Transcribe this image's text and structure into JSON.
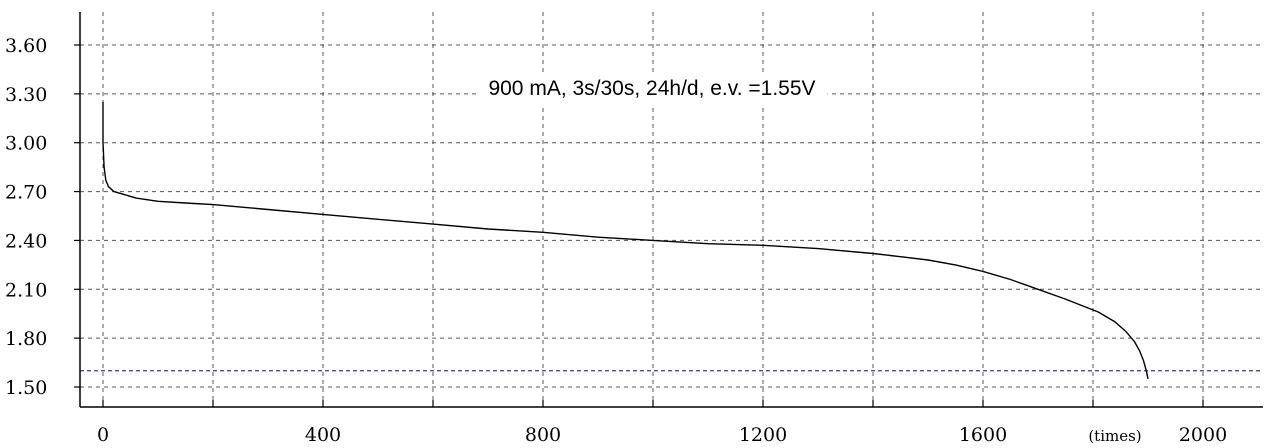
{
  "chart_data": {
    "type": "line",
    "title": "900 mA, 3s/30s, 24h/d, e.v. =1.55V",
    "x_unit": "(times)",
    "xlim": [
      0,
      2090
    ],
    "ylim": [
      1.45,
      3.78
    ],
    "x_ticks": [
      "0",
      "400",
      "800",
      "1200",
      "1600",
      "2000"
    ],
    "y_ticks": [
      "1.50",
      "1.80",
      "2.10",
      "2.40",
      "2.70",
      "3.00",
      "3.30",
      "3.60"
    ],
    "grid": true,
    "reference_line": {
      "y": 1.6,
      "color": "#2b3f8c"
    },
    "series": [
      {
        "color": "#000000",
        "x": [
          0,
          0,
          2,
          5,
          10,
          20,
          40,
          60,
          100,
          150,
          200,
          300,
          400,
          500,
          600,
          700,
          800,
          900,
          1000,
          1100,
          1200,
          1300,
          1400,
          1450,
          1500,
          1550,
          1600,
          1650,
          1700,
          1750,
          1780,
          1810,
          1840,
          1860,
          1875,
          1885,
          1892,
          1897,
          1900
        ],
        "y": [
          3.25,
          3.0,
          2.85,
          2.77,
          2.73,
          2.7,
          2.68,
          2.66,
          2.64,
          2.63,
          2.62,
          2.59,
          2.56,
          2.53,
          2.5,
          2.47,
          2.45,
          2.42,
          2.4,
          2.38,
          2.37,
          2.35,
          2.32,
          2.3,
          2.28,
          2.25,
          2.21,
          2.16,
          2.1,
          2.04,
          2.0,
          1.96,
          1.9,
          1.84,
          1.78,
          1.72,
          1.66,
          1.6,
          1.55
        ]
      }
    ]
  }
}
